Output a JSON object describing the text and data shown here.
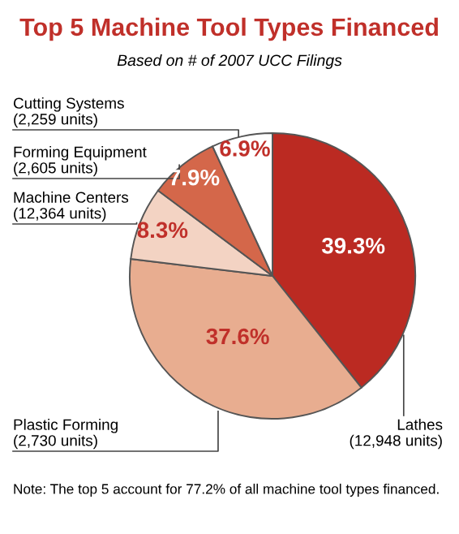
{
  "chart_data": {
    "type": "pie",
    "title": "Top 5 Machine Tool Types Financed",
    "subtitle": "Based on # of 2007 UCC Filings",
    "categories": [
      "Lathes\n(12,948 units)",
      "Plastic Forming\n(2,730 units)",
      "Machine Centers\n(12,364 units)",
      "Forming Equipment\n(2,605 units)",
      "Cutting Systems\n(2,259 units)"
    ],
    "values": [
      39.3,
      37.6,
      8.3,
      7.9,
      6.9
    ],
    "value_labels": [
      "39.3%",
      "37.6%",
      "8.3%",
      "7.9%",
      "6.9%"
    ],
    "colors": [
      "#bb2a22",
      "#e8ad90",
      "#f3d3c3",
      "#d4674a",
      "#ffffff"
    ],
    "annotations": [
      "Note: The top 5 account for 77.2% of all machine tool types financed."
    ],
    "legend": false
  }
}
